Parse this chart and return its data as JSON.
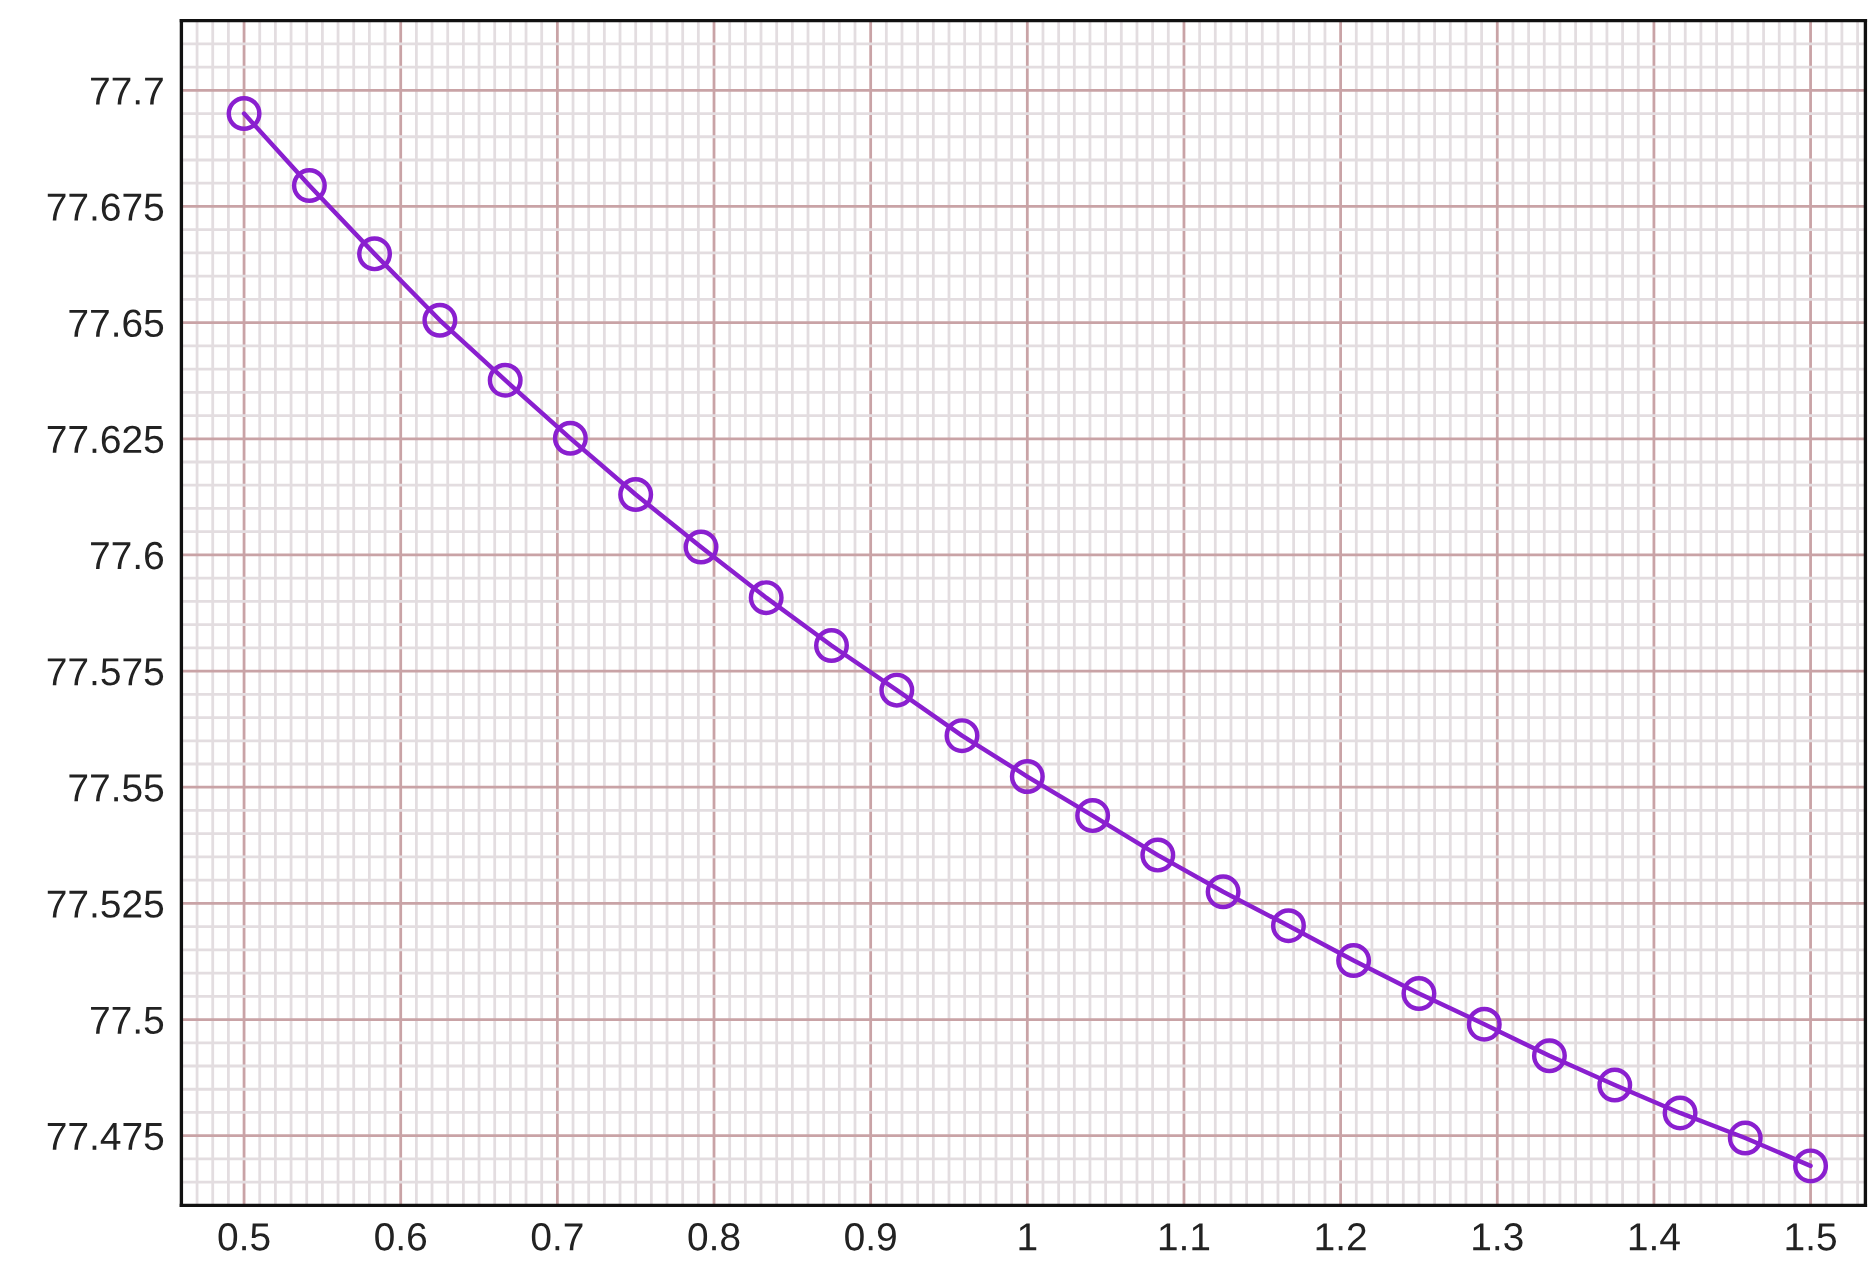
{
  "chart_data": {
    "type": "line",
    "x": [
      0.5,
      0.5417,
      0.5833,
      0.625,
      0.6667,
      0.7083,
      0.75,
      0.7917,
      0.8333,
      0.875,
      0.9167,
      0.9583,
      1.0,
      1.0417,
      1.0833,
      1.125,
      1.1667,
      1.2083,
      1.25,
      1.2917,
      1.3333,
      1.375,
      1.4167,
      1.4583,
      1.5
    ],
    "series": [
      {
        "color": "#8a1fcf",
        "values": [
          77.695,
          77.6795,
          77.6648,
          77.6505,
          77.6376,
          77.6251,
          77.613,
          77.6017,
          77.5908,
          77.5805,
          77.5709,
          77.5611,
          77.5523,
          77.5439,
          77.5354,
          77.5275,
          77.5202,
          77.5127,
          77.5056,
          77.499,
          77.4922,
          77.4859,
          77.4799,
          77.4745,
          77.4685
        ]
      }
    ],
    "xlim": [
      0.46,
      1.535
    ],
    "ylim": [
      77.46,
      77.715
    ],
    "xticks": [
      0.5,
      0.6,
      0.7,
      0.8,
      0.9,
      1,
      1.1,
      1.2,
      1.3,
      1.4,
      1.5
    ],
    "yticks": [
      77.475,
      77.5,
      77.525,
      77.55,
      77.575,
      77.6,
      77.625,
      77.65,
      77.675,
      77.7
    ],
    "grid": true,
    "marker": "circle",
    "line_style": "solid"
  }
}
